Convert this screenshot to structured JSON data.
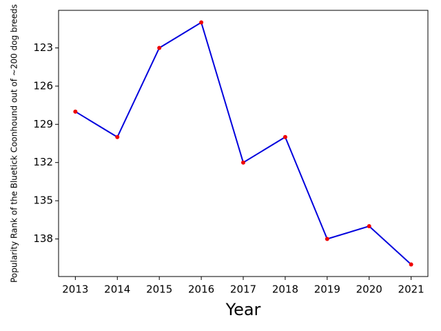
{
  "chart_data": {
    "type": "line",
    "x_label": "Year",
    "y_label": "Popularity Rank of the Bluetick Coonhound out of ~200 dog breeds",
    "x": [
      2013,
      2014,
      2015,
      2016,
      2017,
      2018,
      2019,
      2020,
      2021
    ],
    "series": [
      {
        "color": "#0000dd",
        "marker_color": "#ee0000",
        "values": [
          128,
          130,
          123,
          121,
          132,
          130,
          138,
          137,
          140
        ]
      }
    ],
    "xlim": [
      2012.6,
      2021.4
    ],
    "xticks": [
      2013,
      2014,
      2015,
      2016,
      2017,
      2018,
      2019,
      2020,
      2021
    ],
    "ylim": [
      140.95,
      120.05
    ],
    "yticks": [
      123,
      126,
      129,
      132,
      135,
      138
    ],
    "grid": false
  }
}
